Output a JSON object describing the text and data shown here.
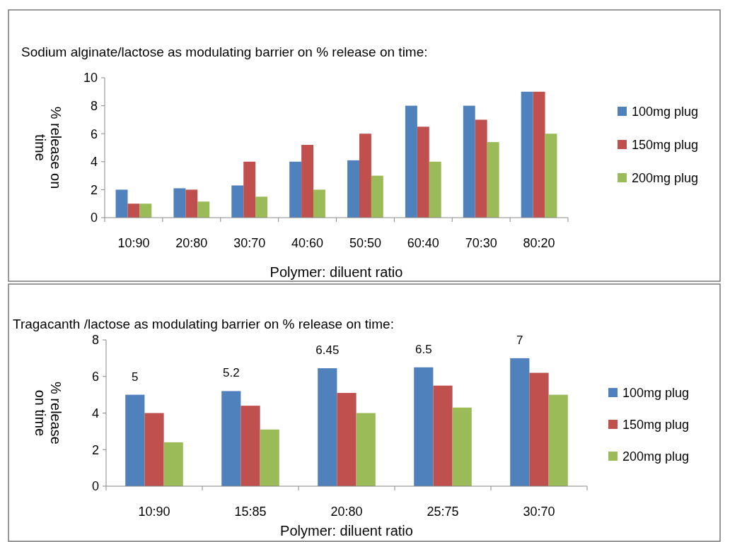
{
  "chart_data": [
    {
      "type": "bar",
      "title": "Sodium alginate/lactose as modulating barrier  on % release on time:",
      "xlabel": "Polymer: diluent ratio",
      "ylabel": "% release on time",
      "categories": [
        "10:90",
        "20:80",
        "30:70",
        "40:60",
        "50:50",
        "60:40",
        "70:30",
        "80:20"
      ],
      "series": [
        {
          "name": "100mg plug",
          "color": "#4f81bd",
          "values": [
            2.0,
            2.1,
            2.3,
            4.0,
            4.1,
            8.0,
            8.0,
            9.0
          ]
        },
        {
          "name": "150mg plug",
          "color": "#c0504d",
          "values": [
            1.0,
            2.0,
            4.0,
            5.2,
            6.0,
            6.5,
            7.0,
            9.0
          ]
        },
        {
          "name": "200mg plug",
          "color": "#9bbb59",
          "values": [
            1.0,
            1.15,
            1.5,
            2.0,
            3.0,
            4.0,
            5.4,
            6.0
          ]
        }
      ],
      "ylim": [
        0,
        10
      ],
      "yticks": [
        0,
        2,
        4,
        6,
        8,
        10
      ],
      "legend": "right"
    },
    {
      "type": "bar",
      "title": "Tragacanth /lactose as modulating barrier  on % release  on  time:",
      "xlabel": "Polymer: diluent ratio",
      "ylabel": "% release on time",
      "categories": [
        "10:90",
        "15:85",
        "20:80",
        "25:75",
        "30:70"
      ],
      "series": [
        {
          "name": "100mg plug",
          "color": "#4f81bd",
          "values": [
            5,
            5.2,
            6.45,
            6.5,
            7
          ],
          "value_labels": [
            "5",
            "5.2",
            "6.45",
            "6.5",
            "7"
          ]
        },
        {
          "name": "150mg plug",
          "color": "#c0504d",
          "values": [
            4.0,
            4.4,
            5.1,
            5.5,
            6.2
          ]
        },
        {
          "name": "200mg plug",
          "color": "#9bbb59",
          "values": [
            2.4,
            3.1,
            4.0,
            4.3,
            5.0
          ]
        }
      ],
      "ylim": [
        0,
        8
      ],
      "yticks": [
        0,
        2,
        4,
        6,
        8
      ],
      "legend": "right"
    }
  ]
}
